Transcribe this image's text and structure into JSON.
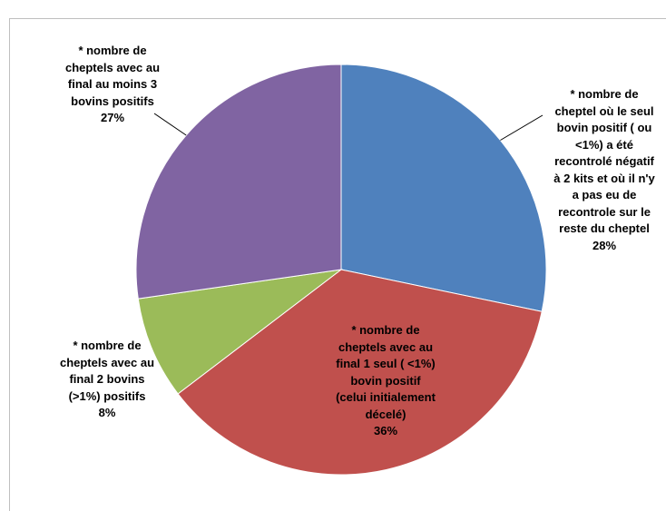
{
  "chart_data": {
    "type": "pie",
    "title": "",
    "slices": [
      {
        "label": "* nombre de cheptel où le seul bovin positif ( ou <1%) a été recontrolé négatif à 2 kits et où il n'y a pas eu de recontrole sur le reste du cheptel",
        "lines": [
          "* nombre de",
          "cheptel où le seul",
          "bovin positif ( ou",
          "<1%) a été",
          "recontrolé négatif",
          "à 2 kits et où il n'y",
          "a pas eu de",
          "recontrole sur le",
          "reste du cheptel"
        ],
        "value": 28,
        "percent_label": "28%",
        "color": "#4F81BD"
      },
      {
        "label": "* nombre de cheptels avec au final 1 seul ( <1%) bovin positif (celui initialement décelé)",
        "lines": [
          "* nombre de",
          "cheptels avec  au",
          "final 1 seul ( <1%)",
          "bovin  positif",
          "(celui initialement",
          "décelé)"
        ],
        "value": 36,
        "percent_label": "36%",
        "color": "#C0504D"
      },
      {
        "label": "* nombre de cheptels avec au final 2 bovins (>1%) positifs",
        "lines": [
          "* nombre de",
          "cheptels avec  au",
          "final 2  bovins",
          "(>1%) positifs"
        ],
        "value": 8,
        "percent_label": "8%",
        "color": "#9BBB59"
      },
      {
        "label": "* nombre de cheptels avec au final au moins 3 bovins positifs",
        "lines": [
          "* nombre de",
          "cheptels avec  au",
          "final au moins 3",
          "bovins  positifs"
        ],
        "value": 27,
        "percent_label": "27%",
        "color": "#8064A2"
      }
    ],
    "start_angle": "12 o'clock",
    "direction": "clockwise",
    "legend": "none"
  }
}
